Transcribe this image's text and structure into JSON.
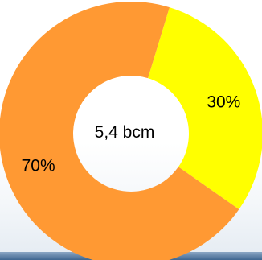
{
  "chart_data": {
    "type": "pie",
    "variant": "donut",
    "center_label": "5,4 bcm",
    "slices": [
      {
        "label": "30%",
        "value": 30,
        "color": "#ffff00"
      },
      {
        "label": "70%",
        "value": 70,
        "color": "#ff9933"
      }
    ],
    "start_angle_deg": 17,
    "legend": "none"
  }
}
